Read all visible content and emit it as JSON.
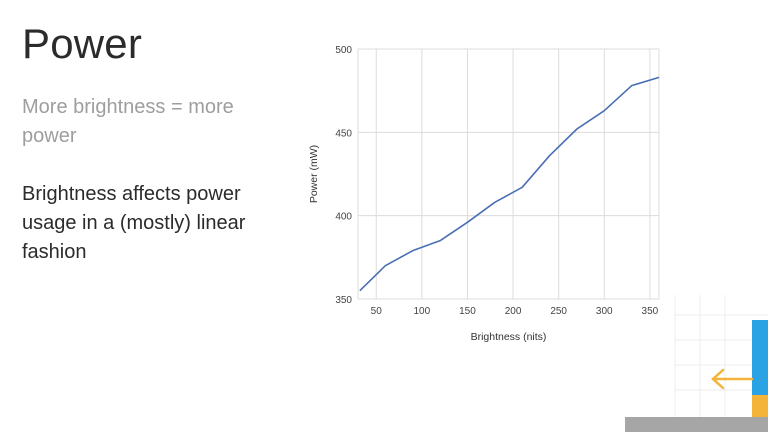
{
  "slide": {
    "title": "Power",
    "subtitle": "More brightness = more power",
    "body": "Brightness affects power usage in a (mostly) linear fashion"
  },
  "colors": {
    "line": "#4a6fb5",
    "grid": "#dcdcdc",
    "accent_blue": "#29a3e3",
    "accent_yellow": "#f4b43a",
    "accent_gray": "#9e9e9e"
  },
  "chart_data": {
    "type": "line",
    "title": "",
    "xlabel": "Brightness (nits)",
    "ylabel": "Power (mW)",
    "xlim": [
      30,
      360
    ],
    "ylim": [
      350,
      500
    ],
    "xticks": [
      50,
      100,
      150,
      200,
      250,
      300,
      350
    ],
    "yticks": [
      350,
      400,
      450,
      500
    ],
    "grid": true,
    "series": [
      {
        "x": [
          32,
          60,
          90,
          120,
          150,
          180,
          210,
          240,
          270,
          300,
          330,
          360
        ],
        "y": [
          355,
          370,
          379,
          385,
          396,
          408,
          417,
          436,
          452,
          463,
          478,
          483
        ]
      }
    ]
  }
}
